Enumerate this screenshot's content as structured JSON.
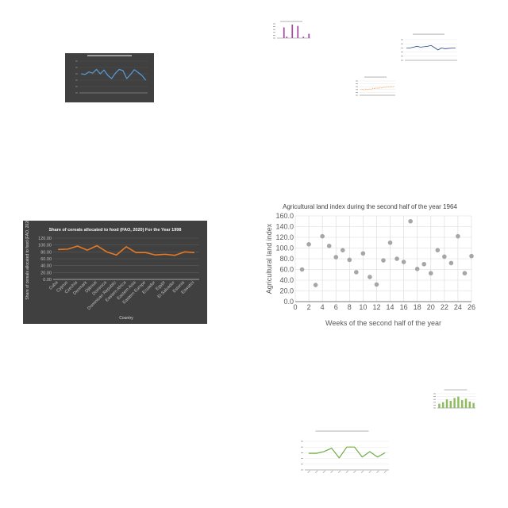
{
  "charts": [
    {
      "id": "c1",
      "chart_data": {
        "type": "line",
        "theme": "dark",
        "title": "",
        "xlabel": "",
        "ylabel": "",
        "x": [
          1,
          2,
          3,
          4,
          5,
          6,
          7,
          8,
          9,
          10,
          11,
          12,
          13,
          14,
          15,
          16,
          17,
          18
        ],
        "series": [
          {
            "name": "",
            "color": "#5b9bd5",
            "values": [
              60,
              58,
              66,
              62,
              74,
              60,
              72,
              55,
              45,
              62,
              74,
              70,
              45,
              58,
              73,
              64,
              55,
              40
            ]
          }
        ],
        "ylim": [
          0,
          100
        ],
        "grid": true
      }
    },
    {
      "id": "c2",
      "chart_data": {
        "type": "bar",
        "theme": "light",
        "title": "",
        "xlabel": "",
        "ylabel": "",
        "categories": [
          "1",
          "2",
          "3",
          "4",
          "5",
          "6",
          "7",
          "8",
          "9",
          "10",
          "11",
          "12"
        ],
        "series": [
          {
            "name": "",
            "color": "#a64ca6",
            "values": [
              0,
              0,
              75,
              10,
              0,
              95,
              0,
              85,
              0,
              10,
              0,
              30
            ]
          }
        ],
        "ylim": [
          0,
          100
        ],
        "grid": false
      }
    },
    {
      "id": "c3",
      "chart_data": {
        "type": "line",
        "theme": "light",
        "title": "",
        "xlabel": "",
        "ylabel": "",
        "x": [
          1,
          2,
          3,
          4,
          5,
          6,
          7,
          8,
          9,
          10,
          11,
          12,
          13,
          14,
          15
        ],
        "series": [
          {
            "name": "",
            "color": "#2e4a8b",
            "values": [
              60,
              60,
              64,
              68,
              64,
              66,
              68,
              72,
              62,
              50,
              60,
              56,
              58,
              59,
              60
            ]
          }
        ],
        "ylim": [
          0,
          100
        ],
        "grid": true
      }
    },
    {
      "id": "c4",
      "chart_data": {
        "type": "line",
        "theme": "light",
        "title": "",
        "xlabel": "",
        "ylabel": "",
        "x": [
          1,
          2,
          3,
          4,
          5,
          6,
          7,
          8,
          9,
          10,
          11,
          12,
          13,
          14,
          15,
          16,
          17,
          18,
          19,
          20
        ],
        "series": [
          {
            "name": "",
            "color": "#f4a460",
            "values": [
              40,
              42,
              38,
              45,
              40,
              44,
              42,
              50,
              46,
              52,
              48,
              55,
              50,
              58,
              54,
              60,
              56,
              62,
              58,
              64
            ]
          }
        ],
        "ylim": [
          0,
          100
        ],
        "grid": true
      }
    },
    {
      "id": "c5",
      "chart_data": {
        "type": "line",
        "theme": "dark",
        "title": "Share of cereals allocated to food (FAO, 2020)  For the Year 1998",
        "xlabel": "Country",
        "ylabel": "Share of cereals allocated to food (FAO, 2020)",
        "categories": [
          "Cuba",
          "Cyprus",
          "Czechia",
          "Denmark",
          "Djibouti",
          "Dominica",
          "Dominican Republic",
          "Eastern Africa",
          "Eastern Asia",
          "Eastern Europe",
          "Ecuador",
          "Egypt",
          "El Salvador",
          "Estonia",
          "Eswatini"
        ],
        "series": [
          {
            "name": "",
            "color": "#e87722",
            "values": [
              87,
              88,
              97,
              85,
              98,
              80,
              71,
              95,
              78,
              78,
              71,
              73,
              70,
              80,
              78
            ]
          }
        ],
        "ylim": [
          0,
          120
        ],
        "yticks": [
          "0.00",
          "20.00",
          "40.00",
          "60.00",
          "80.00",
          "100.00",
          "120.00"
        ],
        "grid": true
      }
    },
    {
      "id": "c6",
      "chart_data": {
        "type": "scatter",
        "theme": "light",
        "title": "Agricultural land index during the second half of the year 1964",
        "xlabel": "Weeks of the second half of the year",
        "ylabel": "Agricultural land index",
        "x": [
          1,
          2,
          3,
          4,
          5,
          6,
          7,
          8,
          9,
          10,
          11,
          12,
          13,
          14,
          15,
          16,
          17,
          18,
          19,
          20,
          21,
          22,
          23,
          24,
          25,
          26
        ],
        "series": [
          {
            "name": "",
            "color": "#a6a6a6",
            "values": [
              60,
              107,
              31,
              122,
              104,
              83,
              96,
              78,
              55,
              90,
              46,
              32,
              77,
              110,
              80,
              74,
              150,
              61,
              70,
              53,
              96,
              84,
              72,
              122,
              53,
              85
            ]
          }
        ],
        "xlim": [
          0,
          26
        ],
        "ylim": [
          0,
          160
        ],
        "xticks": [
          "0",
          "2",
          "4",
          "6",
          "8",
          "10",
          "12",
          "14",
          "16",
          "18",
          "20",
          "22",
          "24",
          "26"
        ],
        "yticks": [
          "0.0",
          "20.0",
          "40.0",
          "60.0",
          "80.0",
          "100.0",
          "120.0",
          "140.0",
          "160.0"
        ],
        "grid": true
      }
    },
    {
      "id": "c7",
      "chart_data": {
        "type": "bar",
        "theme": "light",
        "title": "",
        "xlabel": "",
        "ylabel": "",
        "categories": [
          "1",
          "2",
          "3",
          "4",
          "5",
          "6",
          "7",
          "8",
          "9",
          "10"
        ],
        "series": [
          {
            "name": "",
            "color": "#8fbc5a",
            "values": [
              30,
              40,
              60,
              50,
              70,
              80,
              55,
              65,
              45,
              35
            ]
          }
        ],
        "ylim": [
          0,
          100
        ],
        "grid": true
      }
    },
    {
      "id": "c8",
      "chart_data": {
        "type": "line",
        "theme": "light",
        "title": "",
        "xlabel": "",
        "ylabel": "",
        "categories": [
          "1",
          "2",
          "3",
          "4",
          "5",
          "6",
          "7",
          "8",
          "9",
          "10",
          "11"
        ],
        "series": [
          {
            "name": "",
            "color": "#70ad47",
            "values": [
              58,
              58,
              64,
              76,
              42,
              80,
              80,
              45,
              64,
              45,
              60
            ]
          }
        ],
        "ylim": [
          0,
          100
        ],
        "grid": true
      }
    }
  ]
}
